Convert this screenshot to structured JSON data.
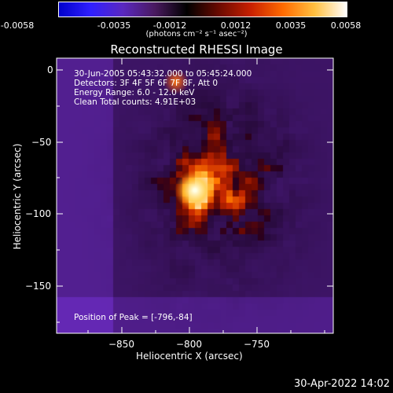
{
  "colorbar": {
    "ticks": [
      "-0.0058",
      "-0.0035",
      "-0.0012",
      "0.0012",
      "0.0035",
      "0.0058"
    ],
    "units_line": "(photons cm⁻² s⁻¹ asec⁻²)",
    "gradient": [
      "#0000cc",
      "#3020ff",
      "#5a28c0",
      "#4a1a60",
      "#000000",
      "#6a0a00",
      "#c82000",
      "#ff6a00",
      "#ffc040",
      "#ffffff"
    ]
  },
  "title": "Reconstructed RHESSI Image",
  "info": {
    "line1": "30-Jun-2005 05:43:32.000 to 05:45:24.000",
    "line2": "Detectors: 3F 4F 5F 6F 7F 8F, Att 0",
    "line3": "Energy Range: 6.0 - 12.0 keV",
    "line4": "Clean     Total counts: 4.91E+03",
    "peak": "Position of Peak = [-796,-84]"
  },
  "axes": {
    "x_title": "Heliocentric X (arcsec)",
    "y_title": "Heliocentric Y (arcsec)",
    "x_ticks": [
      "−850",
      "−800",
      "−750"
    ],
    "y_ticks": [
      "0",
      "−50",
      "−100",
      "−150"
    ]
  },
  "timestamp": "30-Apr-2022 14:02"
}
